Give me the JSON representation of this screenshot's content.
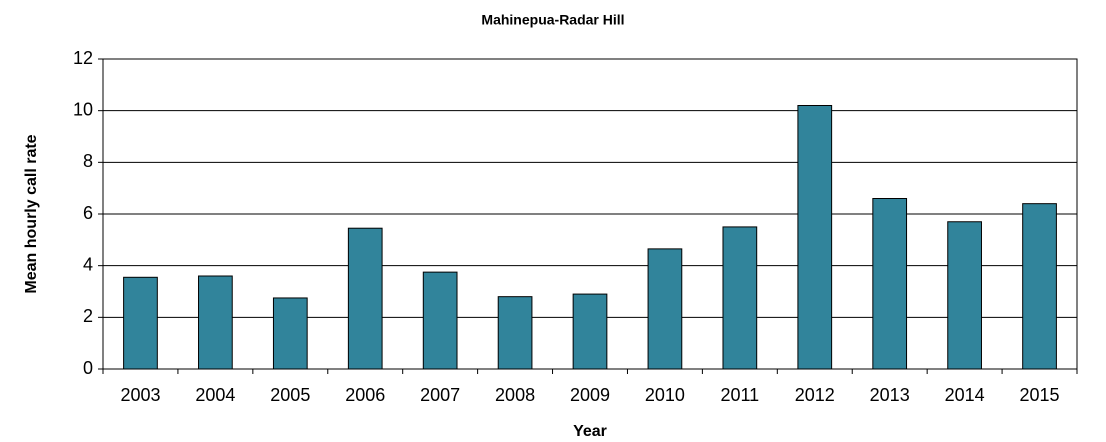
{
  "chart_data": {
    "type": "bar",
    "title": "Mahinepua-Radar Hill",
    "x_label": "Year",
    "y_label": "Mean hourly call rate",
    "categories": [
      "2003",
      "2004",
      "2005",
      "2006",
      "2007",
      "2008",
      "2009",
      "2010",
      "2011",
      "2012",
      "2013",
      "2014",
      "2015"
    ],
    "values": [
      3.55,
      3.6,
      2.75,
      5.45,
      3.75,
      2.8,
      2.9,
      4.65,
      5.5,
      10.2,
      6.6,
      5.7,
      6.4
    ],
    "color": "#31849b",
    "ylim": [
      0,
      12
    ],
    "yticks": [
      0,
      2,
      4,
      6,
      8,
      10,
      12
    ],
    "grid": true
  }
}
